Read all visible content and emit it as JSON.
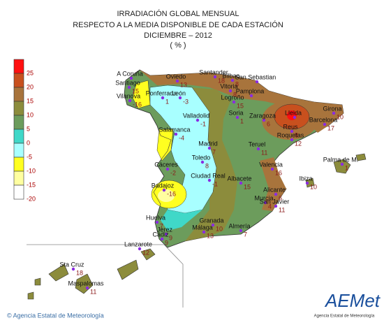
{
  "header": {
    "lines": [
      "IRRADIACIÓN GLOBAL MENSUAL",
      "RESPECTO A LA MEDIA DISPONIBLE DE CADA ESTACIÓN",
      "DICIEMBRE – 2012",
      "( % )"
    ]
  },
  "legend": {
    "labels": [
      25,
      20,
      15,
      10,
      5,
      0,
      -5,
      -10,
      -15,
      -20
    ],
    "colors": [
      "#ff1010",
      "#c8501e",
      "#a8743c",
      "#8c8c3c",
      "#6c9c5c",
      "#40d8c8",
      "#a8ffff",
      "#ffff20",
      "#ffffa0",
      "#ffffff"
    ]
  },
  "stations": [
    {
      "name": "A Coruña"
    },
    {
      "name": "Santiago",
      "value": 15
    },
    {
      "name": "Vilanova",
      "value": -16
    },
    {
      "name": "Oviedo",
      "value": 13
    },
    {
      "name": "Santander",
      "value": 18
    },
    {
      "name": "Bilbao",
      "value": 8
    },
    {
      "name": "San Sebastian"
    },
    {
      "name": "Vitoria",
      "value": 8
    },
    {
      "name": "Pamplona"
    },
    {
      "name": "Logroño",
      "value": 15
    },
    {
      "name": "Ponferrada",
      "value": 1
    },
    {
      "name": "León",
      "value": -3
    },
    {
      "name": "Valladolid",
      "value": -1
    },
    {
      "name": "Soria",
      "value": 1
    },
    {
      "name": "Zaragoza",
      "value": 6
    },
    {
      "name": "Lleida"
    },
    {
      "name": "Girona",
      "value": 10
    },
    {
      "name": "Barcelona",
      "value": 17
    },
    {
      "name": "Reus",
      "value": 8
    },
    {
      "name": "Roquetas",
      "value": 12
    },
    {
      "name": "Salamanca",
      "value": -4
    },
    {
      "name": "Madrid",
      "value": 7
    },
    {
      "name": "Teruel",
      "value": 11
    },
    {
      "name": "Cáceres",
      "value": -2
    },
    {
      "name": "Toledo",
      "value": 8
    },
    {
      "name": "Valencia",
      "value": 16
    },
    {
      "name": "Palma de M.",
      "value": 1
    },
    {
      "name": "Ibiza",
      "value": 10
    },
    {
      "name": "Badajoz",
      "value": -16
    },
    {
      "name": "Ciudad Real",
      "value": -1
    },
    {
      "name": "Albacete",
      "value": 15
    },
    {
      "name": "Alicante",
      "value": 6
    },
    {
      "name": "Murcia",
      "value": 4
    },
    {
      "name": "San Javier",
      "value": 11
    },
    {
      "name": "Huelva",
      "value": 7
    },
    {
      "name": "Granada",
      "value": 10
    },
    {
      "name": "Almería",
      "value": 7
    },
    {
      "name": "Jerez",
      "value": 9
    },
    {
      "name": "Málaga",
      "value": 13
    },
    {
      "name": "Cádiz",
      "value": 9
    },
    {
      "name": "Lanzarote",
      "value": 12
    },
    {
      "name": "Sta Cruz",
      "value": 18
    },
    {
      "name": "Maspalomas",
      "value": 11
    }
  ],
  "footer": {
    "copyright": "© Agencia Estatal de Meteorología",
    "logo": "AEMet",
    "logo_caption": "Agencia Estatal de Meteorología"
  }
}
